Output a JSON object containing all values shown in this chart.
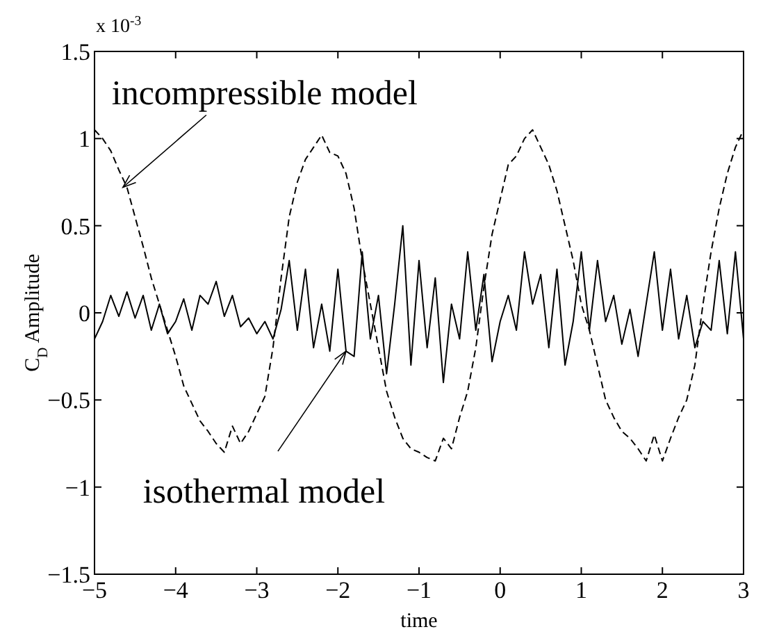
{
  "chart_data": {
    "type": "line",
    "xlabel": "time",
    "ylabel": "C$_{D}$ Amplitude",
    "xlim": [
      -5,
      3
    ],
    "ylim": [
      -1.5,
      1.5
    ],
    "xticks": [
      -5,
      -4,
      -3,
      -2,
      -1,
      0,
      1,
      2,
      3
    ],
    "yticks": [
      -1.5,
      -1,
      -0.5,
      0,
      0.5,
      1,
      1.5
    ],
    "grid": false,
    "marker": "none",
    "x": [
      -5,
      -4.9,
      -4.8,
      -4.7,
      -4.6,
      -4.5,
      -4.4,
      -4.3,
      -4.2,
      -4.1,
      -4,
      -3.9,
      -3.8,
      -3.7,
      -3.6,
      -3.5,
      -3.4,
      -3.3,
      -3.2,
      -3.1,
      -3,
      -2.9,
      -2.8,
      -2.7,
      -2.6,
      -2.5,
      -2.4,
      -2.3,
      -2.2,
      -2.1,
      -2,
      -1.9,
      -1.8,
      -1.7,
      -1.6,
      -1.5,
      -1.4,
      -1.3,
      -1.2,
      -1.1,
      -1,
      -0.9,
      -0.8,
      -0.7,
      -0.6,
      -0.5,
      -0.4,
      -0.3,
      -0.2,
      -0.1,
      0,
      0.1,
      0.2,
      0.3,
      0.4,
      0.5,
      0.6,
      0.7,
      0.8,
      0.9,
      1,
      1.1,
      1.2,
      1.3,
      1.4,
      1.5,
      1.6,
      1.7,
      1.8,
      1.9,
      2,
      2.1,
      2.2,
      2.3,
      2.4,
      2.5,
      2.6,
      2.7,
      2.8,
      2.9,
      3
    ],
    "series": [
      {
        "color": "#000000",
        "line_style": "dashed",
        "values": [
          1.05,
          1.0,
          0.93,
          0.82,
          0.72,
          0.55,
          0.38,
          0.2,
          0.05,
          -0.1,
          -0.25,
          -0.42,
          -0.52,
          -0.62,
          -0.68,
          -0.75,
          -0.8,
          -0.65,
          -0.75,
          -0.68,
          -0.58,
          -0.48,
          -0.2,
          0.2,
          0.55,
          0.75,
          0.88,
          0.95,
          1.02,
          0.92,
          0.9,
          0.8,
          0.6,
          0.3,
          0.05,
          -0.2,
          -0.45,
          -0.6,
          -0.72,
          -0.78,
          -0.8,
          -0.83,
          -0.85,
          -0.72,
          -0.78,
          -0.6,
          -0.45,
          -0.2,
          0.15,
          0.45,
          0.65,
          0.85,
          0.9,
          1.0,
          1.05,
          0.95,
          0.85,
          0.7,
          0.5,
          0.3,
          0.05,
          -0.1,
          -0.3,
          -0.5,
          -0.6,
          -0.68,
          -0.72,
          -0.78,
          -0.85,
          -0.7,
          -0.85,
          -0.72,
          -0.6,
          -0.5,
          -0.3,
          0.05,
          0.35,
          0.6,
          0.8,
          0.95,
          1.05
        ]
      },
      {
        "color": "#000000",
        "line_style": "solid",
        "values": [
          -0.15,
          -0.05,
          0.1,
          -0.02,
          0.12,
          -0.03,
          0.1,
          -0.1,
          0.05,
          -0.12,
          -0.05,
          0.08,
          -0.1,
          0.1,
          0.05,
          0.18,
          -0.02,
          0.1,
          -0.08,
          -0.03,
          -0.12,
          -0.05,
          -0.15,
          0.02,
          0.3,
          -0.1,
          0.25,
          -0.2,
          0.05,
          -0.22,
          0.25,
          -0.22,
          -0.25,
          0.35,
          -0.15,
          0.1,
          -0.35,
          0.05,
          0.5,
          -0.3,
          0.3,
          -0.2,
          0.2,
          -0.4,
          0.05,
          -0.15,
          0.35,
          -0.1,
          0.22,
          -0.28,
          -0.05,
          0.1,
          -0.1,
          0.35,
          0.05,
          0.22,
          -0.2,
          0.25,
          -0.3,
          -0.05,
          0.35,
          -0.1,
          0.3,
          -0.05,
          0.1,
          -0.18,
          0.02,
          -0.25,
          0.05,
          0.35,
          -0.1,
          0.25,
          -0.15,
          0.1,
          -0.2,
          -0.05,
          -0.1,
          0.3,
          -0.12,
          0.35,
          -0.15
        ]
      }
    ],
    "annotations": [
      "x 10$^{-3}$",
      {
        "text": "incompressible model",
        "x": -4.65,
        "y": 0.72
      },
      {
        "text": "isothermal model",
        "x": -1.9,
        "y": -0.22
      }
    ]
  }
}
